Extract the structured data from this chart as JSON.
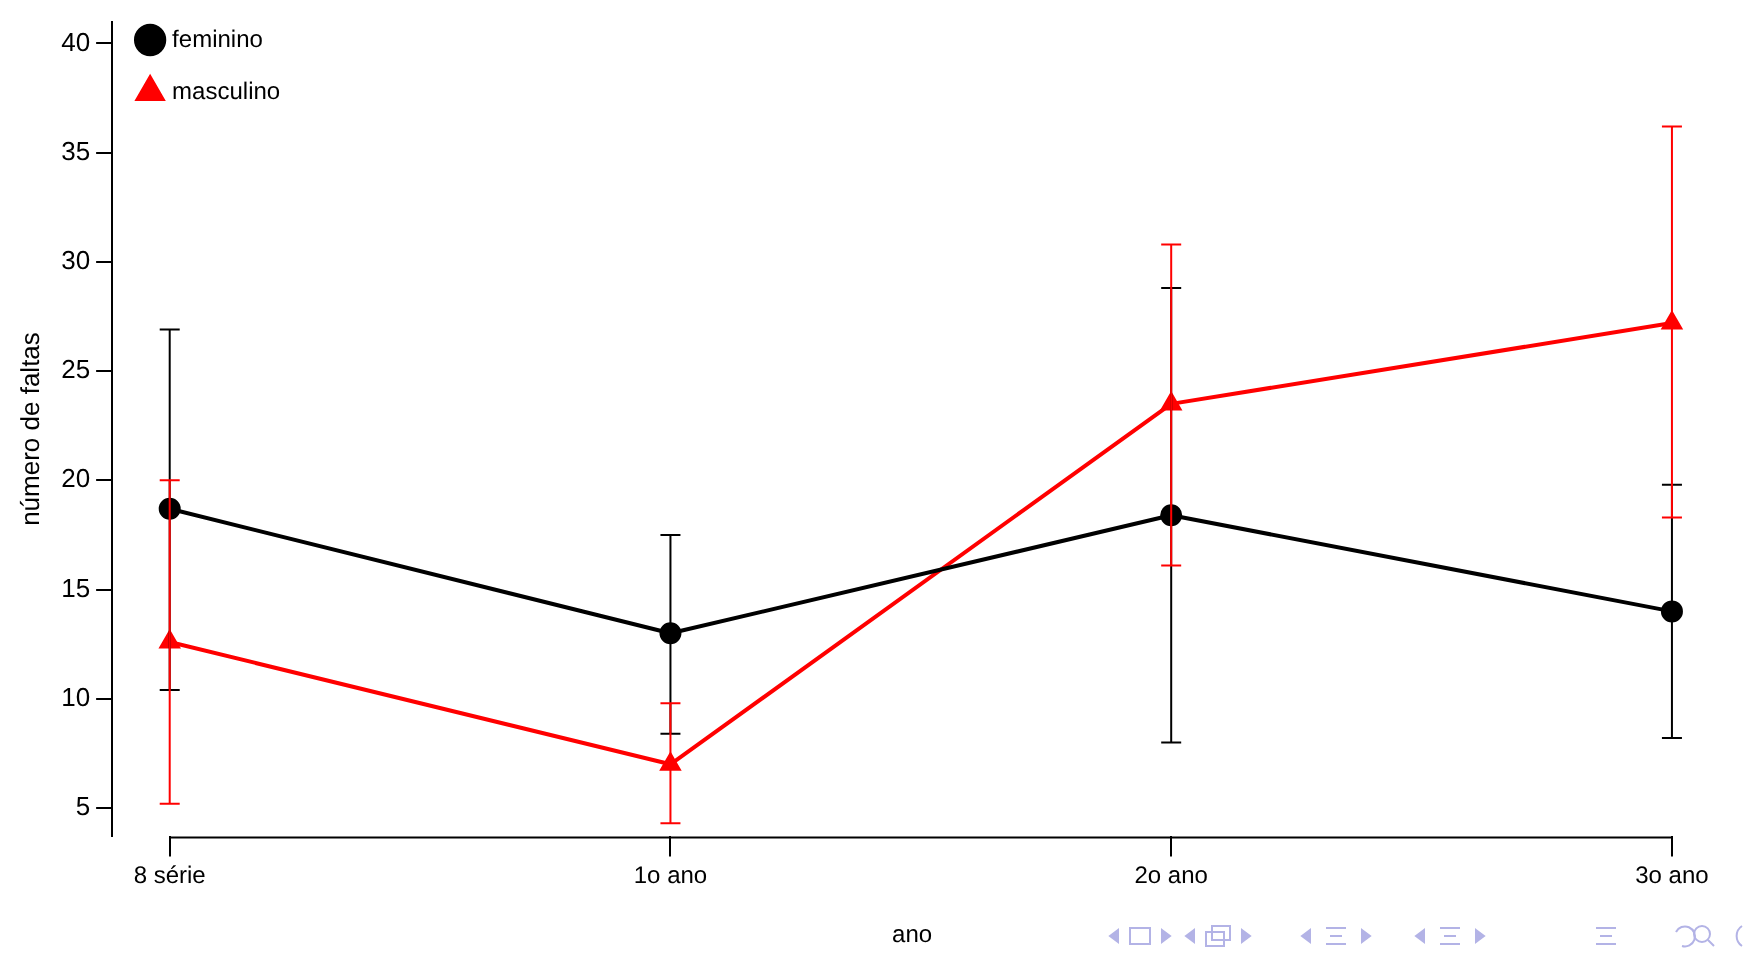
{
  "chart_data": {
    "type": "line",
    "xlabel": "ano",
    "ylabel": "número de faltas",
    "categories": [
      "8 série",
      "1o ano",
      "2o ano",
      "3o ano"
    ],
    "series": [
      {
        "name": "feminino",
        "color": "#000000",
        "marker": "circle",
        "values": [
          18.7,
          13.0,
          18.4,
          14.0
        ],
        "errors": [
          [
            10.4,
            26.9
          ],
          [
            8.4,
            17.5
          ],
          [
            8.0,
            28.8
          ],
          [
            8.2,
            19.8
          ]
        ]
      },
      {
        "name": "masculino",
        "color": "#ff0000",
        "marker": "triangle",
        "values": [
          12.6,
          7.0,
          23.5,
          27.2
        ],
        "errors": [
          [
            5.2,
            20.0
          ],
          [
            4.3,
            9.8
          ],
          [
            16.1,
            30.8
          ],
          [
            18.3,
            36.2
          ]
        ]
      }
    ],
    "ylim": [
      3.7,
      41
    ],
    "yticks": [
      5,
      10,
      15,
      20,
      25,
      30,
      35,
      40
    ],
    "grid": false,
    "legend": "top left"
  }
}
